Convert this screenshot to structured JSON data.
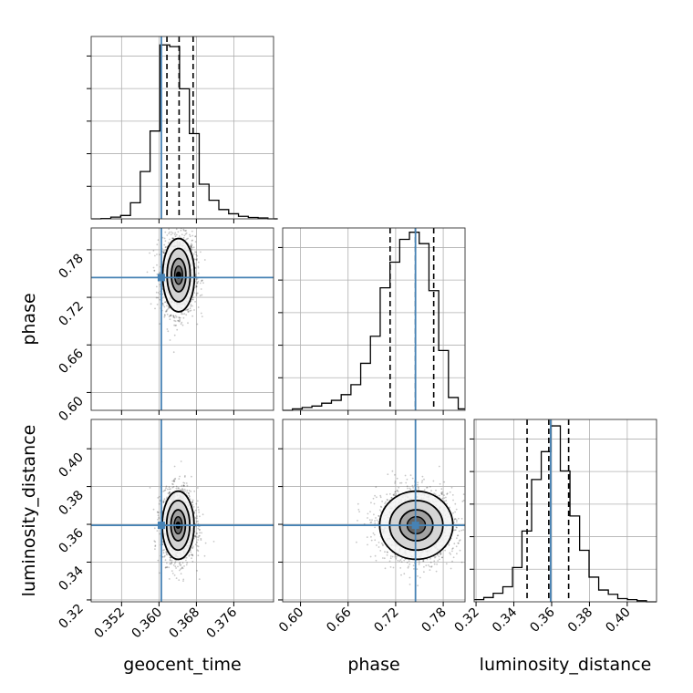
{
  "chart_data": {
    "type": "corner",
    "parameters": [
      {
        "name": "geocent_time",
        "label": "geocent_time",
        "range": [
          0.3455,
          0.3845
        ],
        "ticks": [
          "0.352",
          "0.360",
          "0.368",
          "0.376"
        ],
        "truth": 0.3605,
        "quantiles": [
          0.3617,
          0.3643,
          0.3673
        ]
      },
      {
        "name": "phase",
        "label": "phase",
        "range": [
          0.5775,
          0.8075
        ],
        "ticks": [
          "0.60",
          "0.66",
          "0.72",
          "0.78"
        ],
        "truth": 0.745,
        "quantiles": [
          0.713,
          0.745,
          0.768
        ]
      },
      {
        "name": "luminosity_distance",
        "label": "luminosity_distance",
        "range": [
          0.319,
          0.4155
        ],
        "ticks": [
          "0.32",
          "0.34",
          "0.36",
          "0.38",
          "0.40"
        ],
        "truth": 0.3595,
        "quantiles": [
          0.347,
          0.3585,
          0.369
        ]
      }
    ],
    "histograms": [
      {
        "parameter": "geocent_time",
        "bins": [
          0.3455,
          0.3476,
          0.3497,
          0.3518,
          0.3539,
          0.356,
          0.3581,
          0.3602,
          0.3623,
          0.3644,
          0.3665,
          0.3686,
          0.3707,
          0.3728,
          0.3749,
          0.377,
          0.3791,
          0.3812,
          0.3833,
          0.3854
        ],
        "counts": [
          0,
          2,
          10,
          20,
          95,
          280,
          520,
          1030,
          1020,
          770,
          505,
          205,
          110,
          55,
          30,
          15,
          8,
          5,
          0
        ],
        "ymax": 1080
      },
      {
        "parameter": "phase",
        "bins": [
          0.5775,
          0.5898,
          0.6021,
          0.6144,
          0.6267,
          0.639,
          0.6513,
          0.6636,
          0.6759,
          0.6882,
          0.7005,
          0.7128,
          0.7251,
          0.7374,
          0.7497,
          0.762,
          0.7743,
          0.7866,
          0.7989,
          0.8075
        ],
        "counts": [
          0,
          5,
          10,
          15,
          25,
          35,
          55,
          90,
          165,
          260,
          430,
          520,
          600,
          625,
          585,
          420,
          210,
          45,
          5
        ],
        "ymax": 640
      },
      {
        "parameter": "luminosity_distance",
        "bins": [
          0.319,
          0.3241,
          0.3291,
          0.3342,
          0.3393,
          0.3443,
          0.3494,
          0.3545,
          0.3596,
          0.3646,
          0.3697,
          0.3748,
          0.3798,
          0.3849,
          0.39,
          0.395,
          0.4001,
          0.4052,
          0.4102,
          0.4155
        ],
        "counts": [
          10,
          20,
          40,
          70,
          160,
          330,
          570,
          700,
          820,
          610,
          400,
          240,
          115,
          55,
          35,
          15,
          10,
          5,
          0
        ],
        "ymax": 850
      }
    ],
    "contours": [
      {
        "x": "geocent_time",
        "y": "phase",
        "center": [
          0.3642,
          0.748
        ],
        "sigma": [
          0.00155,
          0.021
        ]
      },
      {
        "x": "geocent_time",
        "y": "luminosity_distance",
        "center": [
          0.3641,
          0.3595
        ],
        "sigma": [
          0.00155,
          0.0082
        ]
      },
      {
        "x": "phase",
        "y": "luminosity_distance",
        "center": [
          0.746,
          0.3595
        ],
        "sigma": [
          0.021,
          0.0082
        ]
      }
    ],
    "quantile_levels": [
      0.16,
      0.5,
      0.84
    ],
    "colors": {
      "truth": "#4682b4",
      "hist": "#000000",
      "grid": "#b0b0b0",
      "quantile": "#000000"
    }
  }
}
